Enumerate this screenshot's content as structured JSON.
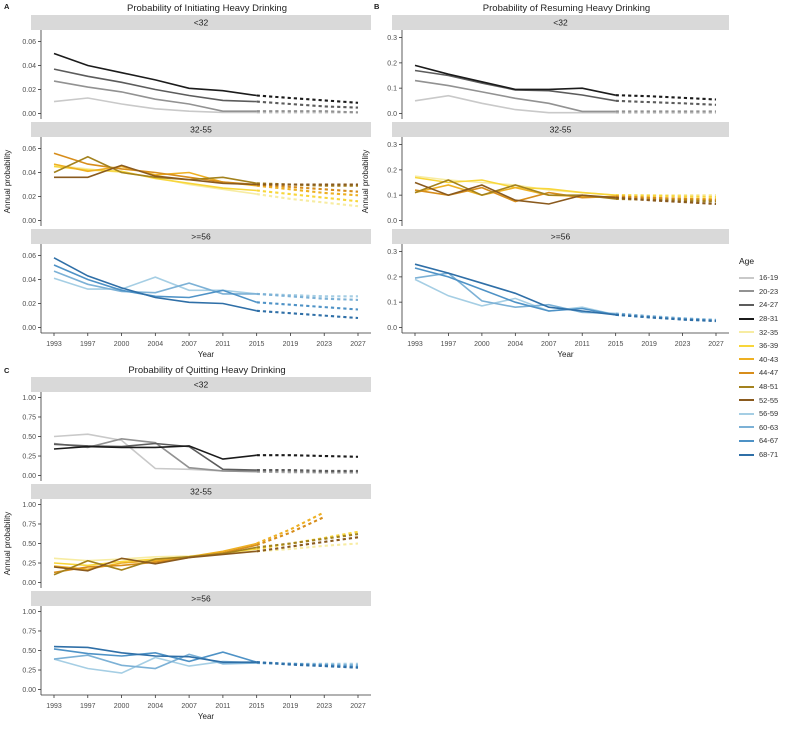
{
  "legend": {
    "title": "Age",
    "entries": [
      {
        "label": "16-19",
        "color": "#c9c9c9"
      },
      {
        "label": "20-23",
        "color": "#929292"
      },
      {
        "label": "24-27",
        "color": "#5c5c5c"
      },
      {
        "label": "28-31",
        "color": "#1b1b1b"
      },
      {
        "label": "32-35",
        "color": "#f7eca2"
      },
      {
        "label": "36-39",
        "color": "#f8d63a"
      },
      {
        "label": "40-43",
        "color": "#eeb022"
      },
      {
        "label": "44-47",
        "color": "#d78d1b"
      },
      {
        "label": "48-51",
        "color": "#a3821e"
      },
      {
        "label": "52-55",
        "color": "#8a5a1e"
      },
      {
        "label": "56-59",
        "color": "#a5cee4"
      },
      {
        "label": "60-63",
        "color": "#7cb1d6"
      },
      {
        "label": "64-67",
        "color": "#4e92c6"
      },
      {
        "label": "68-71",
        "color": "#2f6fa7"
      }
    ]
  },
  "style": {
    "strip_bg": "#d9d9d9",
    "axis_color": "#333333",
    "tick_text_color": "#4d4d4d"
  },
  "chart_data": [
    {
      "type": "line",
      "panel_label": "A",
      "title": "Probability of Initiating Heavy Drinking",
      "xlabel": "Year",
      "ylabel": "Annual probability",
      "x_ticks": [
        "1993",
        "1997",
        "2000",
        "2004",
        "2007",
        "2011",
        "2015",
        "2019",
        "2023",
        "2027"
      ],
      "dash_from_index": 6,
      "yticks": [
        0,
        0.02,
        0.04,
        0.06
      ],
      "ytick_labels": [
        "0.00",
        "0.02",
        "0.04",
        "0.06"
      ],
      "ylim": [
        -0.0045,
        0.0695
      ],
      "facets": [
        {
          "label": "<32",
          "series": [
            {
              "name": "16-19",
              "values": [
                0.01,
                0.013,
                0.008,
                0.004,
                0.002,
                0.001,
                0.001,
                0.001,
                0.001,
                0.001
              ]
            },
            {
              "name": "20-23",
              "values": [
                0.027,
                0.022,
                0.018,
                0.012,
                0.008,
                0.002,
                0.002,
                0.002,
                0.002,
                0.001
              ]
            },
            {
              "name": "24-27",
              "values": [
                0.037,
                0.031,
                0.026,
                0.02,
                0.015,
                0.011,
                0.01,
                0.008,
                0.006,
                0.005
              ]
            },
            {
              "name": "28-31",
              "values": [
                0.05,
                0.04,
                0.034,
                0.028,
                0.021,
                0.019,
                0.015,
                0.013,
                0.011,
                0.009
              ]
            }
          ]
        },
        {
          "label": "32-55",
          "series": [
            {
              "name": "32-35",
              "values": [
                0.046,
                0.043,
                0.04,
                0.036,
                0.03,
                0.026,
                0.022,
                0.018,
                0.015,
                0.012
              ]
            },
            {
              "name": "36-39",
              "values": [
                0.045,
                0.042,
                0.041,
                0.035,
                0.031,
                0.027,
                0.025,
                0.022,
                0.019,
                0.016
              ]
            },
            {
              "name": "40-43",
              "values": [
                0.047,
                0.041,
                0.045,
                0.038,
                0.04,
                0.032,
                0.029,
                0.026,
                0.023,
                0.021
              ]
            },
            {
              "name": "44-47",
              "values": [
                0.056,
                0.047,
                0.043,
                0.04,
                0.036,
                0.032,
                0.03,
                0.028,
                0.026,
                0.024
              ]
            },
            {
              "name": "48-51",
              "values": [
                0.04,
                0.053,
                0.04,
                0.036,
                0.034,
                0.036,
                0.031,
                0.03,
                0.029,
                0.029
              ]
            },
            {
              "name": "52-55",
              "values": [
                0.036,
                0.036,
                0.046,
                0.037,
                0.034,
                0.031,
                0.03,
                0.03,
                0.03,
                0.03
              ]
            }
          ]
        },
        {
          "label": ">=56",
          "series": [
            {
              "name": "56-59",
              "values": [
                0.041,
                0.032,
                0.032,
                0.042,
                0.031,
                0.031,
                0.028,
                0.027,
                0.026,
                0.026
              ]
            },
            {
              "name": "60-63",
              "values": [
                0.047,
                0.036,
                0.03,
                0.029,
                0.037,
                0.028,
                0.028,
                0.026,
                0.024,
                0.023
              ]
            },
            {
              "name": "64-67",
              "values": [
                0.052,
                0.04,
                0.031,
                0.026,
                0.025,
                0.031,
                0.021,
                0.019,
                0.017,
                0.015
              ]
            },
            {
              "name": "68-71",
              "values": [
                0.058,
                0.043,
                0.033,
                0.025,
                0.021,
                0.02,
                0.014,
                0.012,
                0.01,
                0.008
              ]
            }
          ]
        }
      ]
    },
    {
      "type": "line",
      "panel_label": "B",
      "title": "Probability of Resuming Heavy Drinking",
      "xlabel": "Year",
      "ylabel": "Annual probability",
      "x_ticks": [
        "1993",
        "1997",
        "2000",
        "2004",
        "2007",
        "2011",
        "2015",
        "2019",
        "2023",
        "2027"
      ],
      "dash_from_index": 6,
      "yticks": [
        0,
        0.1,
        0.2,
        0.3
      ],
      "ytick_labels": [
        "0.0",
        "0.1",
        "0.2",
        "0.3"
      ],
      "ylim": [
        -0.022,
        0.33
      ],
      "facets": [
        {
          "label": "<32",
          "series": [
            {
              "name": "16-19",
              "values": [
                0.05,
                0.07,
                0.04,
                0.015,
                0.003,
                0.003,
                0.003,
                0.003,
                0.003,
                0.003
              ]
            },
            {
              "name": "20-23",
              "values": [
                0.13,
                0.11,
                0.085,
                0.06,
                0.04,
                0.008,
                0.008,
                0.008,
                0.008,
                0.008
              ]
            },
            {
              "name": "24-27",
              "values": [
                0.17,
                0.15,
                0.12,
                0.093,
                0.09,
                0.073,
                0.05,
                0.045,
                0.04,
                0.034
              ]
            },
            {
              "name": "28-31",
              "values": [
                0.19,
                0.155,
                0.125,
                0.095,
                0.095,
                0.1,
                0.072,
                0.068,
                0.062,
                0.055
              ]
            }
          ]
        },
        {
          "label": "32-55",
          "series": [
            {
              "name": "32-35",
              "values": [
                0.175,
                0.16,
                0.15,
                0.14,
                0.12,
                0.11,
                0.1,
                0.1,
                0.1,
                0.1
              ]
            },
            {
              "name": "36-39",
              "values": [
                0.17,
                0.15,
                0.16,
                0.13,
                0.125,
                0.11,
                0.1,
                0.098,
                0.095,
                0.093
              ]
            },
            {
              "name": "40-43",
              "values": [
                0.11,
                0.14,
                0.1,
                0.13,
                0.1,
                0.095,
                0.09,
                0.088,
                0.086,
                0.084
              ]
            },
            {
              "name": "44-47",
              "values": [
                0.12,
                0.1,
                0.13,
                0.075,
                0.11,
                0.09,
                0.095,
                0.09,
                0.085,
                0.08
              ]
            },
            {
              "name": "48-51",
              "values": [
                0.11,
                0.16,
                0.1,
                0.14,
                0.1,
                0.1,
                0.085,
                0.082,
                0.079,
                0.075
              ]
            },
            {
              "name": "52-55",
              "values": [
                0.15,
                0.1,
                0.14,
                0.08,
                0.065,
                0.1,
                0.09,
                0.08,
                0.073,
                0.065
              ]
            }
          ]
        },
        {
          "label": ">=56",
          "series": [
            {
              "name": "56-59",
              "values": [
                0.19,
                0.125,
                0.085,
                0.115,
                0.065,
                0.08,
                0.05,
                0.04,
                0.035,
                0.03
              ]
            },
            {
              "name": "60-63",
              "values": [
                0.195,
                0.215,
                0.105,
                0.08,
                0.09,
                0.06,
                0.055,
                0.045,
                0.036,
                0.03
              ]
            },
            {
              "name": "64-67",
              "values": [
                0.235,
                0.2,
                0.15,
                0.1,
                0.065,
                0.075,
                0.05,
                0.04,
                0.032,
                0.027
              ]
            },
            {
              "name": "68-71",
              "values": [
                0.25,
                0.215,
                0.175,
                0.135,
                0.08,
                0.065,
                0.05,
                0.04,
                0.031,
                0.025
              ]
            }
          ]
        }
      ]
    },
    {
      "type": "line",
      "panel_label": "C",
      "title": "Probability of Quitting Heavy Drinking",
      "xlabel": "Year",
      "ylabel": "Annual probability",
      "x_ticks": [
        "1993",
        "1997",
        "2000",
        "2004",
        "2007",
        "2011",
        "2015",
        "2019",
        "2023",
        "2027"
      ],
      "dash_from_index": 6,
      "yticks": [
        0,
        0.25,
        0.5,
        0.75,
        1.0
      ],
      "ytick_labels": [
        "0.00",
        "0.25",
        "0.50",
        "0.75",
        "1.00"
      ],
      "ylim": [
        -0.07,
        1.07
      ],
      "facets": [
        {
          "label": "<32",
          "series": [
            {
              "name": "16-19",
              "values": [
                0.5,
                0.53,
                0.45,
                0.09,
                0.08,
                0.06,
                0.05,
                0.04,
                0.04,
                0.04
              ]
            },
            {
              "name": "20-23",
              "values": [
                0.41,
                0.36,
                0.47,
                0.42,
                0.1,
                0.06,
                0.05,
                0.05,
                0.04,
                0.04
              ]
            },
            {
              "name": "24-27",
              "values": [
                0.4,
                0.38,
                0.37,
                0.41,
                0.37,
                0.08,
                0.07,
                0.07,
                0.06,
                0.06
              ]
            },
            {
              "name": "28-31",
              "values": [
                0.34,
                0.37,
                0.36,
                0.36,
                0.38,
                0.21,
                0.26,
                0.26,
                0.25,
                0.24
              ]
            }
          ]
        },
        {
          "label": "32-55",
          "series": [
            {
              "name": "32-35",
              "values": [
                0.31,
                0.28,
                0.3,
                0.33,
                0.34,
                0.37,
                0.4,
                0.43,
                0.47,
                0.5
              ]
            },
            {
              "name": "36-39",
              "values": [
                0.25,
                0.22,
                0.27,
                0.3,
                0.33,
                0.38,
                0.43,
                0.5,
                0.57,
                0.65
              ]
            },
            {
              "name": "40-43",
              "values": [
                0.21,
                0.17,
                0.25,
                0.28,
                0.33,
                0.4,
                0.5,
                0.68,
                0.9,
                null
              ]
            },
            {
              "name": "44-47",
              "values": [
                0.13,
                0.2,
                0.22,
                0.26,
                0.32,
                0.38,
                0.48,
                0.64,
                0.84,
                null
              ]
            },
            {
              "name": "48-51",
              "values": [
                0.1,
                0.28,
                0.16,
                0.3,
                0.33,
                0.37,
                0.45,
                0.5,
                0.56,
                0.62
              ]
            },
            {
              "name": "52-55",
              "values": [
                0.2,
                0.15,
                0.31,
                0.24,
                0.32,
                0.36,
                0.4,
                0.46,
                0.52,
                0.58
              ]
            }
          ]
        },
        {
          "label": ">=56",
          "series": [
            {
              "name": "56-59",
              "values": [
                0.39,
                0.27,
                0.21,
                0.41,
                0.3,
                0.36,
                0.34,
                0.33,
                0.33,
                0.33
              ]
            },
            {
              "name": "60-63",
              "values": [
                0.39,
                0.44,
                0.31,
                0.27,
                0.45,
                0.33,
                0.34,
                0.33,
                0.32,
                0.31
              ]
            },
            {
              "name": "64-67",
              "values": [
                0.52,
                0.46,
                0.43,
                0.47,
                0.36,
                0.48,
                0.35,
                0.33,
                0.31,
                0.29
              ]
            },
            {
              "name": "68-71",
              "values": [
                0.55,
                0.54,
                0.47,
                0.43,
                0.42,
                0.35,
                0.35,
                0.32,
                0.3,
                0.28
              ]
            }
          ]
        }
      ]
    }
  ]
}
